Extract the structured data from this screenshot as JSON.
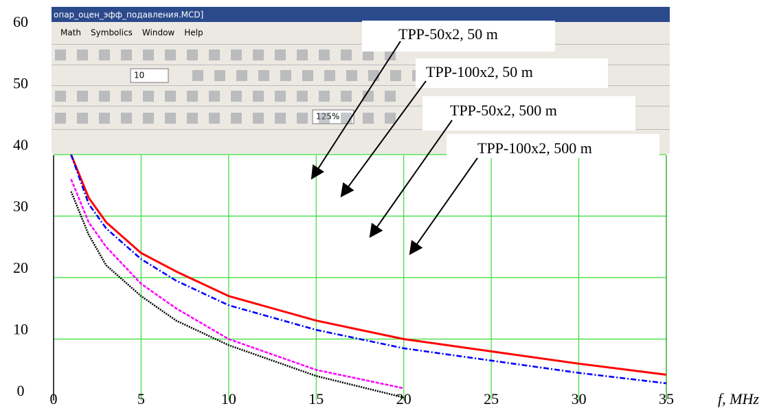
{
  "chart_data": {
    "type": "line",
    "x_label": "f, MHz",
    "x": [
      1,
      2,
      3,
      5,
      7,
      10,
      15,
      20,
      25,
      30,
      35
    ],
    "series": [
      {
        "name": "TPP-50x2, 50 m",
        "color": "#ff0000",
        "values": [
          40,
          33,
          29,
          24,
          21,
          17,
          13,
          10,
          8,
          6,
          4.2
        ]
      },
      {
        "name": "TPP-100x2, 50 m",
        "color": "#0000ff",
        "values": [
          40,
          32,
          28,
          23,
          19.5,
          15.5,
          11.5,
          8.5,
          6.5,
          4.5,
          2.8
        ]
      },
      {
        "name": "TPP-50x2, 500 m",
        "color": "#ff00ff",
        "values": [
          36,
          29,
          25,
          19,
          15,
          10,
          5,
          2,
          null,
          null,
          null
        ]
      },
      {
        "name": "TPP-100x2, 500 m",
        "color": "#000000",
        "values": [
          34,
          27,
          22,
          17,
          13,
          9,
          4,
          0.5,
          null,
          null,
          null
        ]
      }
    ],
    "xlim": [
      0,
      35
    ],
    "xticks": [
      0,
      5,
      10,
      15,
      20,
      25,
      30,
      35
    ],
    "ylim": [
      0,
      60
    ],
    "yticks": [
      0,
      10,
      20,
      30,
      40,
      50,
      60
    ],
    "grid": true
  },
  "screenshot": {
    "title": "опар_оцен_эфф_подавления.MCD]",
    "menu": [
      "Math",
      "Symbolics",
      "Window",
      "Help"
    ],
    "font_size": "10",
    "zoom": "125%"
  }
}
